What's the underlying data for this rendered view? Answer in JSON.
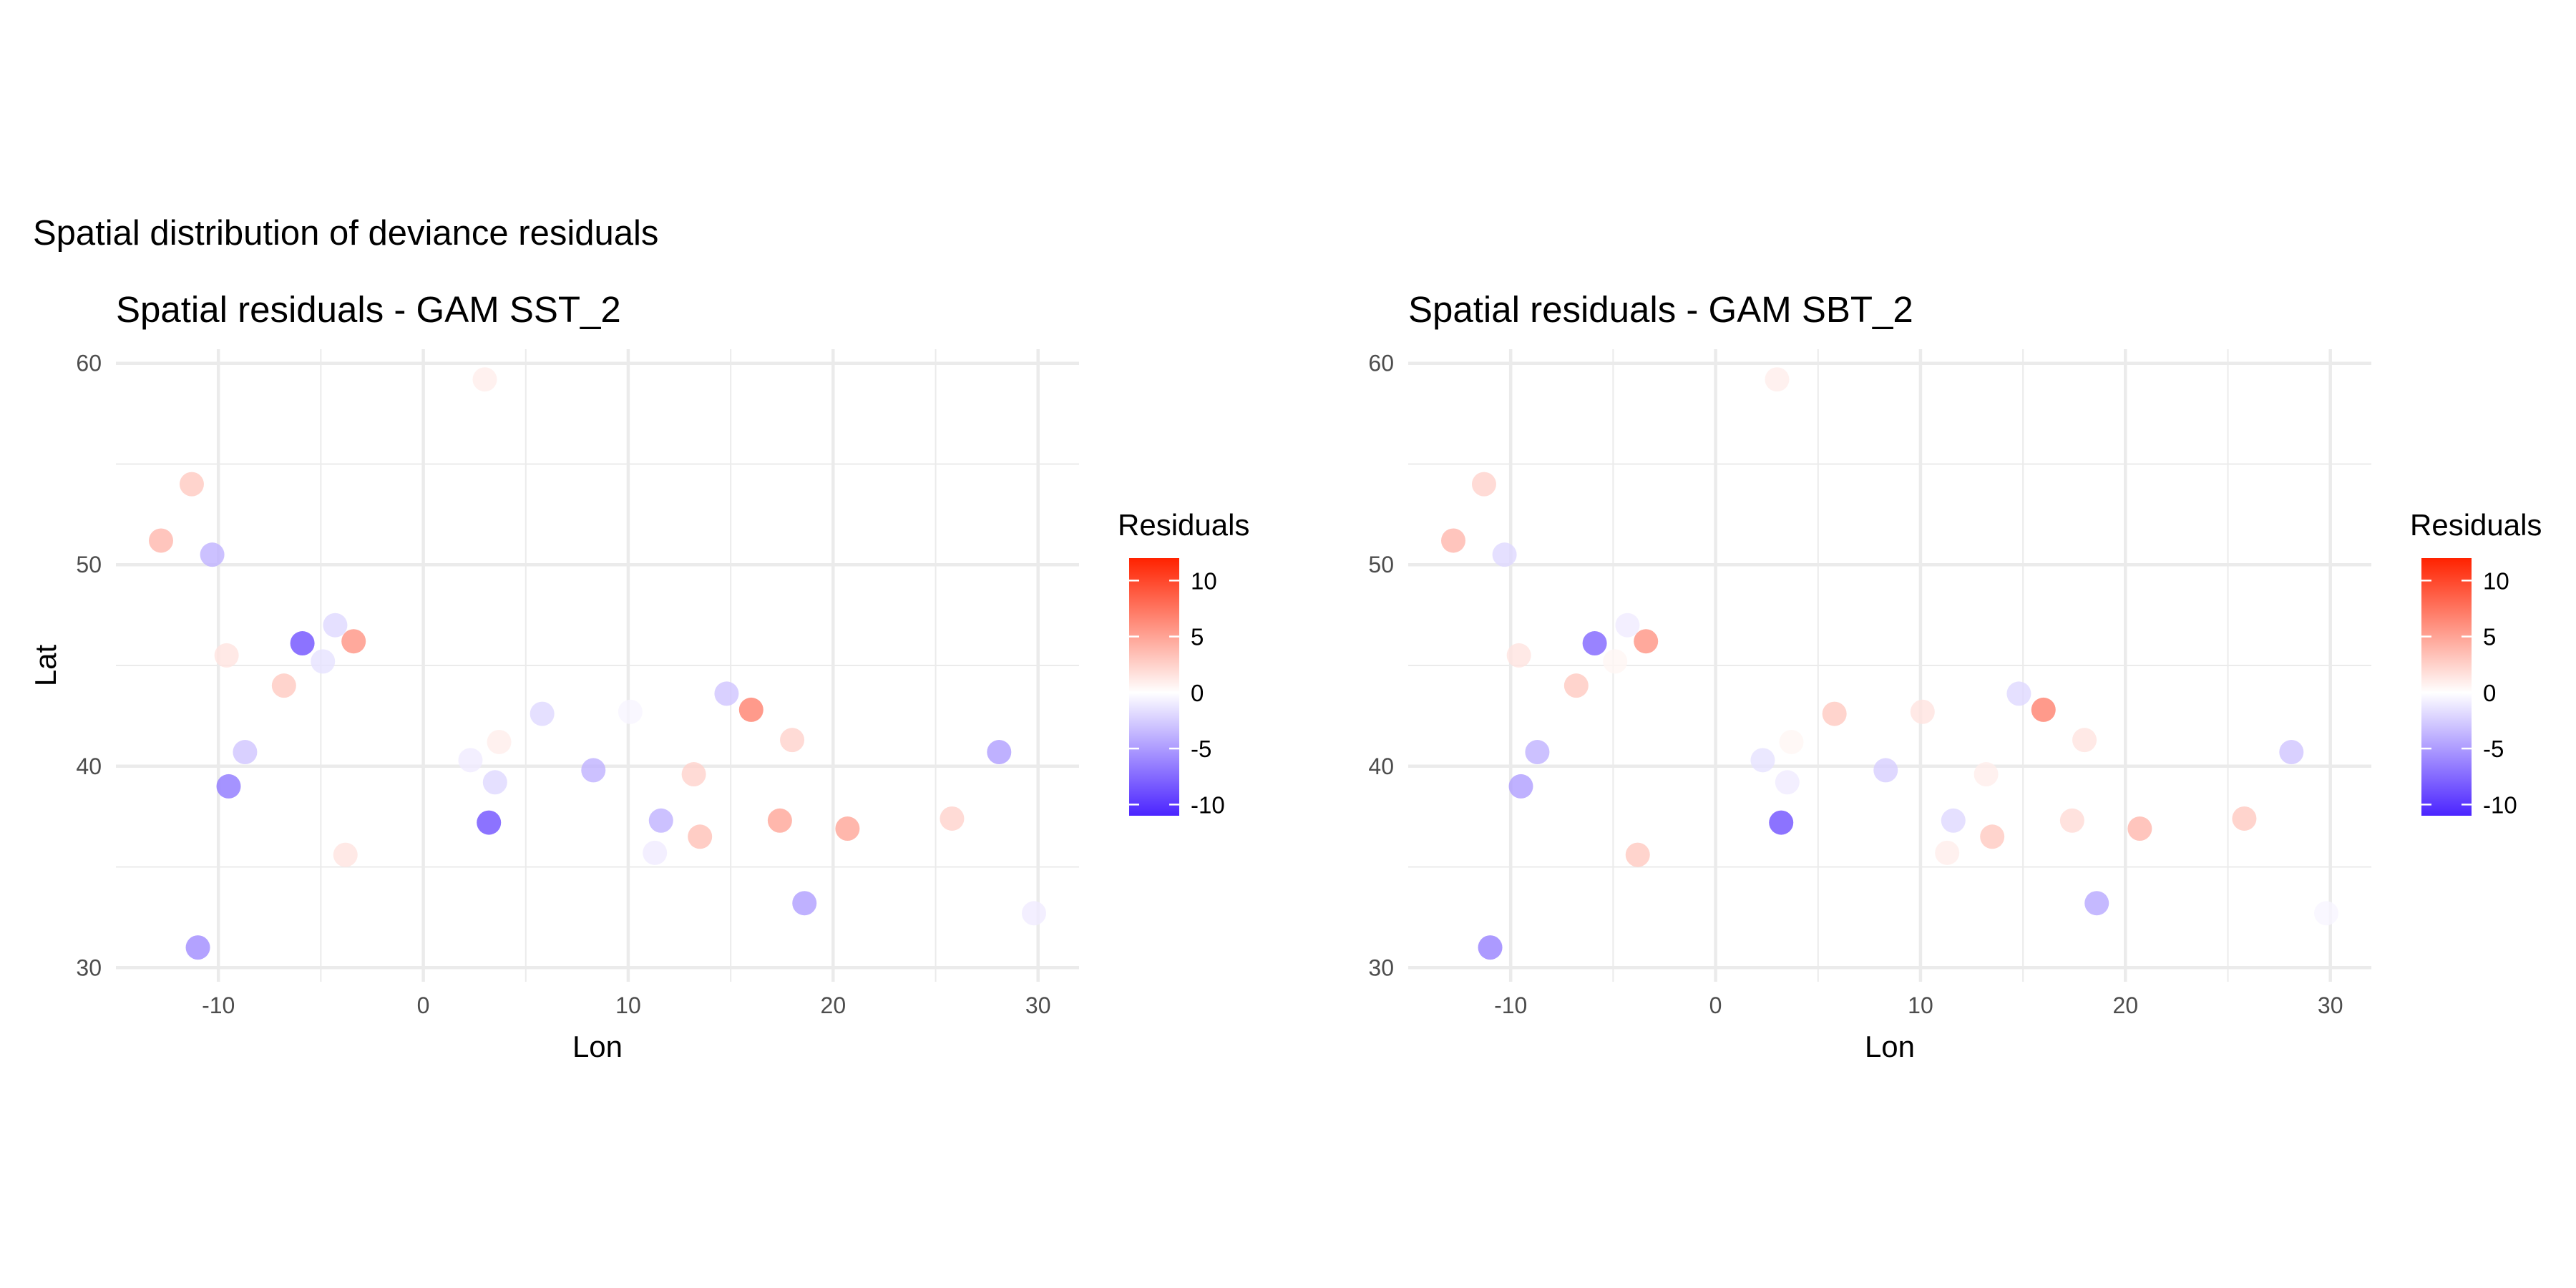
{
  "main_title": "Spatial distribution of deviance residuals",
  "colors": {
    "low": "#4b24ff",
    "mid": "#ffffff",
    "high": "#ff2200",
    "grid": "#ebebeb"
  },
  "chart_data": [
    {
      "type": "scatter",
      "title": "Spatial residuals - GAM SST_2",
      "xlabel": "Lon",
      "ylabel": "Lat",
      "xlim": [
        -15,
        32
      ],
      "ylim": [
        29.3,
        60.7
      ],
      "xticks": [
        -10,
        0,
        10,
        20,
        30
      ],
      "yticks": [
        30,
        40,
        50,
        60
      ],
      "legend": {
        "title": "Residuals",
        "position": "right",
        "range": [
          -11,
          12
        ],
        "ticks": [
          10,
          5,
          0,
          -5,
          -10
        ]
      },
      "points": [
        {
          "lon": 3.0,
          "lat": 59.2,
          "res": 1
        },
        {
          "lon": -11.3,
          "lat": 54.0,
          "res": 3
        },
        {
          "lon": -12.8,
          "lat": 51.2,
          "res": 4
        },
        {
          "lon": -10.3,
          "lat": 50.5,
          "res": -4
        },
        {
          "lon": -4.3,
          "lat": 47.0,
          "res": -2
        },
        {
          "lon": -5.9,
          "lat": 46.1,
          "res": -9
        },
        {
          "lon": -3.4,
          "lat": 46.2,
          "res": 6
        },
        {
          "lon": -9.6,
          "lat": 45.5,
          "res": 1.5
        },
        {
          "lon": -4.9,
          "lat": 45.2,
          "res": -1.5
        },
        {
          "lon": -6.8,
          "lat": 44.0,
          "res": 3
        },
        {
          "lon": -8.7,
          "lat": 40.7,
          "res": -3
        },
        {
          "lon": -9.5,
          "lat": 39.0,
          "res": -7
        },
        {
          "lon": -3.8,
          "lat": 35.6,
          "res": 1.5
        },
        {
          "lon": -11.0,
          "lat": 31.0,
          "res": -6
        },
        {
          "lon": 3.7,
          "lat": 41.2,
          "res": 1
        },
        {
          "lon": 2.3,
          "lat": 40.3,
          "res": -1
        },
        {
          "lon": 3.5,
          "lat": 39.2,
          "res": -2
        },
        {
          "lon": 3.2,
          "lat": 37.2,
          "res": -9
        },
        {
          "lon": 5.8,
          "lat": 42.6,
          "res": -2
        },
        {
          "lon": 10.1,
          "lat": 42.7,
          "res": -0.5
        },
        {
          "lon": 8.3,
          "lat": 39.8,
          "res": -4
        },
        {
          "lon": 11.6,
          "lat": 37.3,
          "res": -4
        },
        {
          "lon": 11.3,
          "lat": 35.7,
          "res": -1
        },
        {
          "lon": 13.2,
          "lat": 39.6,
          "res": 2.5
        },
        {
          "lon": 13.5,
          "lat": 36.5,
          "res": 3.5
        },
        {
          "lon": 14.8,
          "lat": 43.6,
          "res": -3
        },
        {
          "lon": 16.0,
          "lat": 42.8,
          "res": 7
        },
        {
          "lon": 18.0,
          "lat": 41.3,
          "res": 2.5
        },
        {
          "lon": 17.4,
          "lat": 37.3,
          "res": 5
        },
        {
          "lon": 20.7,
          "lat": 36.9,
          "res": 5
        },
        {
          "lon": 18.6,
          "lat": 33.2,
          "res": -5
        },
        {
          "lon": 25.8,
          "lat": 37.4,
          "res": 2.5
        },
        {
          "lon": 28.1,
          "lat": 40.7,
          "res": -5
        },
        {
          "lon": 29.8,
          "lat": 32.7,
          "res": -1
        }
      ]
    },
    {
      "type": "scatter",
      "title": "Spatial residuals - GAM SBT_2",
      "xlabel": "Lon",
      "ylabel": "",
      "xlim": [
        -15,
        32
      ],
      "ylim": [
        29.3,
        60.7
      ],
      "xticks": [
        -10,
        0,
        10,
        20,
        30
      ],
      "yticks": [
        30,
        40,
        50,
        60
      ],
      "legend": {
        "title": "Residuals",
        "position": "right",
        "range": [
          -11,
          12
        ],
        "ticks": [
          10,
          5,
          0,
          -5,
          -10
        ]
      },
      "points": [
        {
          "lon": 3.0,
          "lat": 59.2,
          "res": 1
        },
        {
          "lon": -11.3,
          "lat": 54.0,
          "res": 2.5
        },
        {
          "lon": -12.8,
          "lat": 51.2,
          "res": 4
        },
        {
          "lon": -10.3,
          "lat": 50.5,
          "res": -2
        },
        {
          "lon": -4.3,
          "lat": 47.0,
          "res": -1
        },
        {
          "lon": -5.9,
          "lat": 46.1,
          "res": -8
        },
        {
          "lon": -3.4,
          "lat": 46.2,
          "res": 6
        },
        {
          "lon": -9.6,
          "lat": 45.5,
          "res": 1.5
        },
        {
          "lon": -4.9,
          "lat": 45.2,
          "res": 0.5
        },
        {
          "lon": -6.8,
          "lat": 44.0,
          "res": 3
        },
        {
          "lon": -8.7,
          "lat": 40.7,
          "res": -4
        },
        {
          "lon": -9.5,
          "lat": 39.0,
          "res": -5
        },
        {
          "lon": -3.8,
          "lat": 35.6,
          "res": 3
        },
        {
          "lon": -11.0,
          "lat": 31.0,
          "res": -6.5
        },
        {
          "lon": 3.7,
          "lat": 41.2,
          "res": 0.5
        },
        {
          "lon": 2.3,
          "lat": 40.3,
          "res": -1.5
        },
        {
          "lon": 3.5,
          "lat": 39.2,
          "res": -1
        },
        {
          "lon": 3.2,
          "lat": 37.2,
          "res": -9
        },
        {
          "lon": 5.8,
          "lat": 42.6,
          "res": 3
        },
        {
          "lon": 10.1,
          "lat": 42.7,
          "res": 1.5
        },
        {
          "lon": 8.3,
          "lat": 39.8,
          "res": -2.5
        },
        {
          "lon": 11.6,
          "lat": 37.3,
          "res": -2
        },
        {
          "lon": 11.3,
          "lat": 35.7,
          "res": 1
        },
        {
          "lon": 13.2,
          "lat": 39.6,
          "res": 1
        },
        {
          "lon": 13.5,
          "lat": 36.5,
          "res": 3
        },
        {
          "lon": 14.8,
          "lat": 43.6,
          "res": -2
        },
        {
          "lon": 16.0,
          "lat": 42.8,
          "res": 7
        },
        {
          "lon": 18.0,
          "lat": 41.3,
          "res": 1.5
        },
        {
          "lon": 17.4,
          "lat": 37.3,
          "res": 2
        },
        {
          "lon": 20.7,
          "lat": 36.9,
          "res": 4
        },
        {
          "lon": 18.6,
          "lat": 33.2,
          "res": -4.5
        },
        {
          "lon": 25.8,
          "lat": 37.4,
          "res": 3
        },
        {
          "lon": 28.1,
          "lat": 40.7,
          "res": -3
        },
        {
          "lon": 29.8,
          "lat": 32.7,
          "res": -0.5
        }
      ]
    }
  ]
}
